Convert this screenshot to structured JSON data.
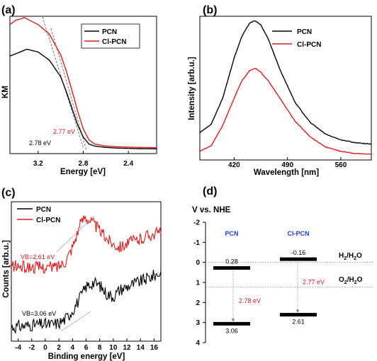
{
  "colors": {
    "pcn": "#000000",
    "clpcn": "#e41a1c",
    "band_label": "#1f3fd6"
  },
  "chart_data": [
    {
      "panel": "(a)",
      "type": "line",
      "xlabel": "Energy [eV]",
      "ylabel": "KM",
      "x_ticks": [
        "3.2",
        "2.8",
        "2.4"
      ],
      "x_reversed": true,
      "xlim": [
        3.45,
        2.15
      ],
      "ylim": [
        0,
        1
      ],
      "legend": [
        "PCN",
        "Cl-PCN"
      ],
      "legend_position": "top-right",
      "annotations": [
        "2.77 eV",
        "2.78 eV"
      ],
      "series": [
        {
          "name": "PCN",
          "color": "#000000",
          "x": [
            3.45,
            3.3,
            3.2,
            3.1,
            3.0,
            2.95,
            2.9,
            2.85,
            2.8,
            2.75,
            2.7,
            2.6,
            2.5,
            2.4,
            2.3,
            2.15
          ],
          "y": [
            0.71,
            0.76,
            0.74,
            0.68,
            0.56,
            0.45,
            0.33,
            0.21,
            0.12,
            0.07,
            0.055,
            0.045,
            0.04,
            0.038,
            0.036,
            0.035
          ]
        },
        {
          "name": "Cl-PCN",
          "color": "#e41a1c",
          "x": [
            3.45,
            3.4,
            3.32,
            3.25,
            3.2,
            3.1,
            3.0,
            2.95,
            2.9,
            2.85,
            2.8,
            2.75,
            2.7,
            2.6,
            2.5,
            2.4,
            2.3,
            2.15
          ],
          "y": [
            0.94,
            0.97,
            0.99,
            0.96,
            0.94,
            0.87,
            0.72,
            0.6,
            0.46,
            0.31,
            0.18,
            0.1,
            0.07,
            0.055,
            0.05,
            0.047,
            0.045,
            0.043
          ]
        }
      ]
    },
    {
      "panel": "(b)",
      "type": "line",
      "xlabel": "Wavelength [nm]",
      "ylabel": "Intensity [arb.u.]",
      "x_ticks": [
        "420",
        "490",
        "560"
      ],
      "xlim": [
        375,
        600
      ],
      "ylim": [
        0,
        1
      ],
      "legend": [
        "PCN",
        "Cl-PCN"
      ],
      "legend_position": "top-right",
      "series": [
        {
          "name": "PCN",
          "color": "#000000",
          "x": [
            375,
            390,
            405,
            420,
            430,
            440,
            447,
            455,
            465,
            480,
            500,
            520,
            540,
            560,
            580,
            600
          ],
          "y": [
            0.19,
            0.25,
            0.43,
            0.71,
            0.86,
            0.95,
            0.97,
            0.94,
            0.84,
            0.63,
            0.4,
            0.26,
            0.18,
            0.14,
            0.12,
            0.11
          ]
        },
        {
          "name": "Cl-PCN",
          "color": "#e41a1c",
          "x": [
            375,
            390,
            405,
            420,
            430,
            440,
            448,
            455,
            465,
            480,
            500,
            520,
            540,
            560,
            580,
            600
          ],
          "y": [
            0.06,
            0.1,
            0.24,
            0.43,
            0.55,
            0.62,
            0.64,
            0.61,
            0.55,
            0.43,
            0.27,
            0.16,
            0.09,
            0.06,
            0.045,
            0.04
          ]
        }
      ]
    },
    {
      "panel": "(c)",
      "type": "line",
      "xlabel": "Binding energy [eV]",
      "ylabel": "Counts [arb.u.]",
      "x_ticks": [
        "-4",
        "-2",
        "0",
        "2",
        "4",
        "6",
        "8",
        "10",
        "12",
        "14",
        "16"
      ],
      "xlim": [
        -5,
        17
      ],
      "ylim": [
        0,
        1
      ],
      "legend": [
        "PCN",
        "Cl-PCN"
      ],
      "legend_position": "top-left",
      "annotations": [
        "VB=2.61 eV",
        "VB=3.06 eV"
      ],
      "series": [
        {
          "name": "PCN",
          "color": "#000000",
          "x": [
            -5,
            -3,
            -1,
            1,
            2,
            3,
            4,
            5,
            6,
            7,
            8,
            9,
            10,
            11,
            12,
            13,
            14,
            15,
            16,
            17
          ],
          "y": [
            0.1,
            0.11,
            0.12,
            0.12,
            0.13,
            0.16,
            0.22,
            0.3,
            0.39,
            0.42,
            0.4,
            0.34,
            0.32,
            0.37,
            0.39,
            0.41,
            0.43,
            0.45,
            0.47,
            0.49
          ]
        },
        {
          "name": "Cl-PCN",
          "color": "#e41a1c",
          "x": [
            -5,
            -3,
            -1,
            1,
            2,
            3,
            4,
            5,
            5.8,
            7,
            8,
            9,
            10,
            11,
            12,
            13,
            14,
            15,
            16,
            17
          ],
          "y": [
            0.54,
            0.53,
            0.53,
            0.53,
            0.54,
            0.58,
            0.68,
            0.82,
            0.9,
            0.85,
            0.79,
            0.74,
            0.7,
            0.68,
            0.7,
            0.72,
            0.73,
            0.76,
            0.77,
            0.78
          ]
        }
      ]
    },
    {
      "panel": "(d)",
      "type": "diagram",
      "ylabel": "V vs. NHE",
      "y_ticks": [
        "-2",
        "-1",
        "0",
        "1",
        "2",
        "3",
        "4"
      ],
      "ylim": [
        -2,
        4
      ],
      "columns": [
        "PCN",
        "Cl-PCN"
      ],
      "levels": [
        {
          "material": "PCN",
          "cb": 0.28,
          "vb": 3.06,
          "cb_label": "0.28",
          "vb_label": "3.06",
          "gap_label": "2.78 eV"
        },
        {
          "material": "Cl-PCN",
          "cb": -0.16,
          "vb": 2.61,
          "cb_label": "-0.16",
          "vb_label": "2.61",
          "gap_label": "2.77 eV"
        }
      ],
      "redox": [
        {
          "value": 0.0,
          "label_main": "H",
          "label_sub": "2",
          "label_rest": "/H",
          "label_sub2": "2",
          "label_end": "O"
        },
        {
          "value": 1.23,
          "label_main": "O",
          "label_sub": "2",
          "label_rest": "/H",
          "label_sub2": "2",
          "label_end": "O"
        }
      ]
    }
  ]
}
